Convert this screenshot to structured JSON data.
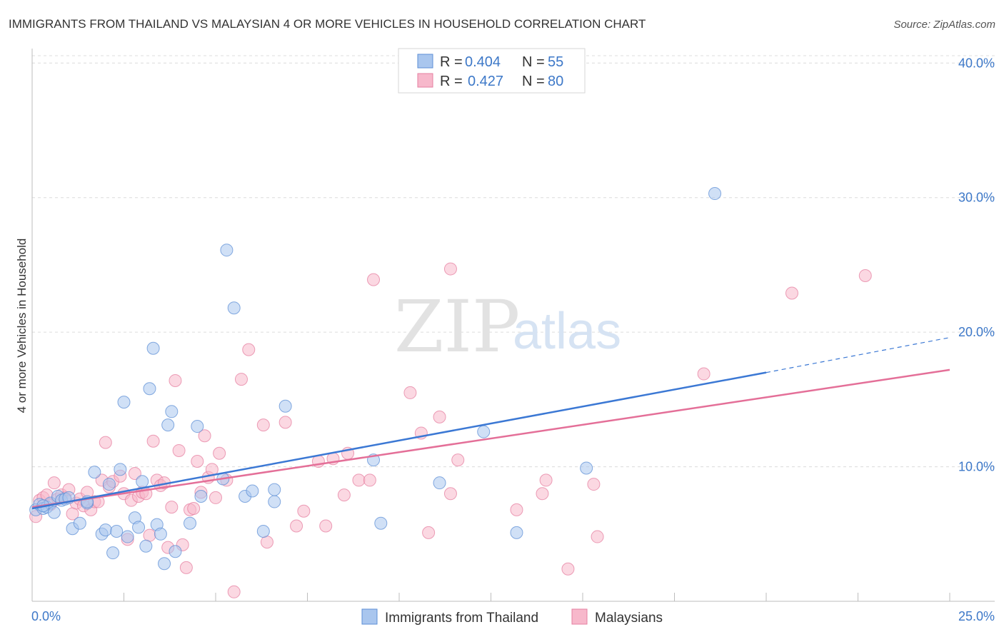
{
  "chart_data": {
    "type": "scatter",
    "title": "IMMIGRANTS FROM THAILAND VS MALAYSIAN 4 OR MORE VEHICLES IN HOUSEHOLD CORRELATION CHART",
    "source": "Source: ZipAtlas.com",
    "watermark": {
      "zip": "ZIP",
      "atlas": "atlas"
    },
    "xlabel": "",
    "ylabel": "4 or more Vehicles in Household",
    "xlim": [
      0,
      25
    ],
    "ylim": [
      0,
      41.5
    ],
    "x_tick_labels": {
      "left": "0.0%",
      "right": "25.0%"
    },
    "y_ticks": [
      {
        "value": 10,
        "label": "10.0%"
      },
      {
        "value": 20,
        "label": "20.0%"
      },
      {
        "value": 30,
        "label": "30.0%"
      },
      {
        "value": 40,
        "label": "40.0%"
      }
    ],
    "legend": {
      "r_label": "R =",
      "n_label": "N =",
      "entries": [
        {
          "r": "0.404",
          "n": "55",
          "color": "#a9c6ee",
          "stroke": "#5d8fd6"
        },
        {
          "r": "0.427",
          "n": "80",
          "color": "#f7b8cb",
          "stroke": "#e57fa0"
        }
      ]
    },
    "series": [
      {
        "name": "Immigrants from Thailand",
        "fill": "#a9c6ee",
        "stroke": "#5d8fd6",
        "trend_color": "#3b78d4",
        "trend": {
          "x0": 0,
          "y0": 6.9,
          "x1": 20,
          "y1": 17.0,
          "dash_to_x": 25,
          "dash_to_y": 19.6
        },
        "points": [
          [
            0.1,
            6.8
          ],
          [
            0.2,
            7.2
          ],
          [
            0.3,
            6.9
          ],
          [
            0.4,
            7.0
          ],
          [
            0.5,
            7.3
          ],
          [
            0.6,
            6.6
          ],
          [
            0.7,
            7.8
          ],
          [
            0.8,
            7.5
          ],
          [
            0.9,
            7.6
          ],
          [
            1.0,
            7.7
          ],
          [
            1.1,
            5.4
          ],
          [
            1.3,
            5.8
          ],
          [
            1.5,
            7.3
          ],
          [
            1.7,
            9.6
          ],
          [
            1.9,
            5.0
          ],
          [
            2.0,
            5.3
          ],
          [
            2.1,
            8.7
          ],
          [
            2.2,
            3.6
          ],
          [
            2.3,
            5.2
          ],
          [
            2.4,
            9.8
          ],
          [
            2.5,
            14.8
          ],
          [
            2.6,
            4.8
          ],
          [
            2.8,
            6.2
          ],
          [
            2.9,
            5.5
          ],
          [
            3.0,
            8.9
          ],
          [
            3.1,
            4.1
          ],
          [
            3.2,
            15.8
          ],
          [
            3.3,
            18.8
          ],
          [
            3.4,
            5.7
          ],
          [
            3.5,
            5.0
          ],
          [
            3.6,
            2.8
          ],
          [
            3.7,
            13.1
          ],
          [
            3.8,
            14.1
          ],
          [
            3.9,
            3.7
          ],
          [
            4.3,
            5.8
          ],
          [
            4.5,
            13.0
          ],
          [
            4.6,
            7.8
          ],
          [
            5.3,
            26.1
          ],
          [
            5.5,
            21.8
          ],
          [
            5.2,
            9.1
          ],
          [
            5.8,
            7.8
          ],
          [
            6.0,
            8.2
          ],
          [
            6.3,
            5.2
          ],
          [
            6.6,
            7.4
          ],
          [
            6.6,
            8.3
          ],
          [
            6.9,
            14.5
          ],
          [
            9.3,
            10.5
          ],
          [
            9.5,
            5.8
          ],
          [
            11.1,
            8.8
          ],
          [
            12.3,
            12.6
          ],
          [
            13.2,
            5.1
          ],
          [
            15.1,
            9.9
          ],
          [
            18.6,
            30.3
          ],
          [
            1.5,
            7.4
          ],
          [
            0.3,
            7.1
          ]
        ]
      },
      {
        "name": "Malaysians",
        "fill": "#f7b8cb",
        "stroke": "#e57fa0",
        "trend_color": "#e46f98",
        "trend": {
          "x0": 0,
          "y0": 7.0,
          "x1": 25,
          "y1": 17.2
        },
        "points": [
          [
            0.1,
            6.3
          ],
          [
            0.2,
            7.5
          ],
          [
            0.3,
            7.7
          ],
          [
            0.4,
            7.9
          ],
          [
            0.5,
            7.2
          ],
          [
            0.6,
            8.8
          ],
          [
            0.7,
            7.6
          ],
          [
            0.8,
            7.9
          ],
          [
            0.9,
            7.7
          ],
          [
            1.0,
            8.3
          ],
          [
            1.1,
            6.5
          ],
          [
            1.2,
            7.3
          ],
          [
            1.3,
            7.6
          ],
          [
            1.4,
            7.1
          ],
          [
            1.5,
            8.1
          ],
          [
            1.6,
            6.8
          ],
          [
            1.7,
            7.4
          ],
          [
            1.8,
            7.4
          ],
          [
            1.9,
            9.0
          ],
          [
            2.0,
            11.8
          ],
          [
            2.1,
            8.5
          ],
          [
            2.2,
            8.9
          ],
          [
            2.4,
            9.3
          ],
          [
            2.5,
            8.0
          ],
          [
            2.6,
            4.6
          ],
          [
            2.7,
            7.5
          ],
          [
            2.8,
            9.5
          ],
          [
            2.9,
            7.8
          ],
          [
            3.0,
            8.1
          ],
          [
            3.1,
            8.0
          ],
          [
            3.2,
            4.9
          ],
          [
            3.3,
            11.9
          ],
          [
            3.4,
            9.0
          ],
          [
            3.5,
            8.6
          ],
          [
            3.6,
            8.8
          ],
          [
            3.7,
            4.0
          ],
          [
            3.8,
            7.0
          ],
          [
            3.9,
            16.4
          ],
          [
            4.0,
            11.2
          ],
          [
            4.1,
            4.2
          ],
          [
            4.2,
            2.5
          ],
          [
            4.3,
            6.8
          ],
          [
            4.4,
            6.9
          ],
          [
            4.5,
            10.4
          ],
          [
            4.6,
            8.1
          ],
          [
            4.7,
            12.3
          ],
          [
            4.8,
            9.2
          ],
          [
            4.9,
            9.8
          ],
          [
            5.0,
            7.7
          ],
          [
            5.1,
            11.0
          ],
          [
            5.3,
            9.0
          ],
          [
            5.5,
            0.7
          ],
          [
            5.7,
            16.5
          ],
          [
            5.9,
            18.7
          ],
          [
            6.3,
            13.1
          ],
          [
            6.4,
            4.4
          ],
          [
            6.9,
            13.3
          ],
          [
            7.2,
            5.6
          ],
          [
            7.4,
            6.7
          ],
          [
            7.8,
            10.4
          ],
          [
            8.0,
            5.6
          ],
          [
            8.2,
            10.6
          ],
          [
            8.5,
            7.9
          ],
          [
            8.6,
            11.0
          ],
          [
            8.9,
            9.0
          ],
          [
            9.2,
            9.0
          ],
          [
            9.3,
            23.9
          ],
          [
            10.3,
            15.5
          ],
          [
            10.6,
            12.5
          ],
          [
            10.8,
            5.1
          ],
          [
            11.1,
            13.7
          ],
          [
            11.4,
            8.0
          ],
          [
            11.4,
            24.7
          ],
          [
            11.6,
            10.5
          ],
          [
            13.2,
            6.8
          ],
          [
            13.9,
            8.0
          ],
          [
            14.0,
            9.0
          ],
          [
            14.6,
            2.4
          ],
          [
            15.3,
            8.7
          ],
          [
            15.4,
            4.8
          ]
        ],
        "extra_points": [
          [
            18.3,
            16.9
          ],
          [
            20.7,
            22.9
          ],
          [
            22.7,
            24.2
          ]
        ]
      }
    ],
    "bottom_legend": [
      "Immigrants from Thailand",
      "Malaysians"
    ]
  }
}
